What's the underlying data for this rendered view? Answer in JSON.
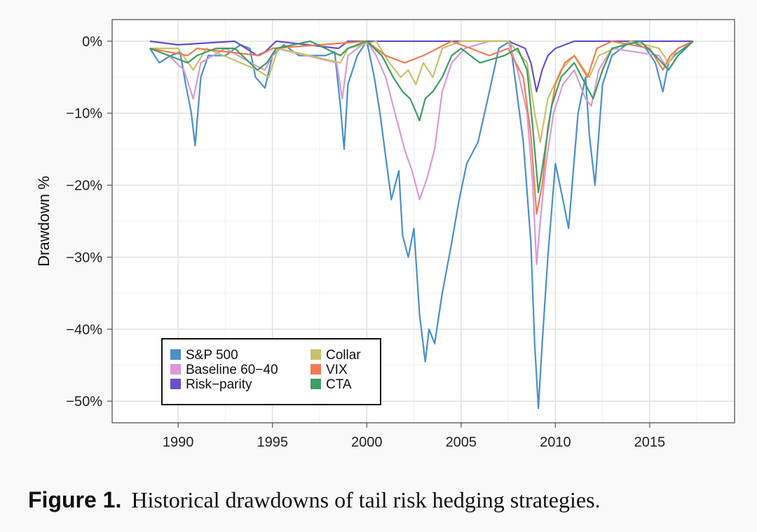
{
  "caption": {
    "label": "Figure 1.",
    "text": "Historical drawdowns of tail risk hedging strategies."
  },
  "chart_data": {
    "type": "line",
    "title": "",
    "xlabel": "",
    "ylabel": "Drawdown %",
    "xlim": [
      1986.5,
      2019.5
    ],
    "ylim": [
      -53,
      3
    ],
    "x_ticks": [
      1990,
      1995,
      2000,
      2005,
      2010,
      2015
    ],
    "y_ticks": [
      {
        "value": 0,
        "label": "0%"
      },
      {
        "value": -10,
        "label": "−10%"
      },
      {
        "value": -20,
        "label": "−20%"
      },
      {
        "value": -30,
        "label": "−30%"
      },
      {
        "value": -40,
        "label": "−40%"
      },
      {
        "value": -50,
        "label": "−50%"
      }
    ],
    "grid": true,
    "legend_position": "bottom-left",
    "series": [
      {
        "name": "S&P 500",
        "color": "#4a90c9",
        "x": [
          1988.5,
          1989.0,
          1989.6,
          1990.1,
          1990.4,
          1990.7,
          1990.9,
          1991.2,
          1991.6,
          1992.5,
          1993.3,
          1993.8,
          1994.1,
          1994.6,
          1995.0,
          1995.6,
          1996.4,
          1997.1,
          1997.8,
          1998.3,
          1998.6,
          1998.8,
          1999.0,
          1999.5,
          2000.0,
          2000.4,
          2000.7,
          2001.0,
          2001.3,
          2001.7,
          2001.9,
          2002.2,
          2002.5,
          2002.8,
          2003.1,
          2003.3,
          2003.6,
          2004.0,
          2004.5,
          2004.9,
          2005.3,
          2005.9,
          2006.5,
          2007.0,
          2007.6,
          2007.9,
          2008.3,
          2008.7,
          2008.9,
          2009.1,
          2009.3,
          2009.6,
          2010.0,
          2010.4,
          2010.7,
          2011.2,
          2011.6,
          2011.8,
          2012.1,
          2012.5,
          2013.0,
          2014.0,
          2014.8,
          2015.3,
          2015.7,
          2016.0,
          2016.3,
          2016.8,
          2017.3
        ],
        "y": [
          -1,
          -3,
          -2,
          -1.5,
          -6,
          -10,
          -14.5,
          -5,
          -2,
          -2,
          -0.5,
          -1,
          -5,
          -6.5,
          -2,
          -0.5,
          -2,
          -2,
          -2,
          -1.5,
          -9,
          -15,
          -6,
          -2,
          0,
          -5,
          -10,
          -16,
          -22,
          -18,
          -27,
          -30,
          -26,
          -38,
          -44.5,
          -40,
          -42,
          -35,
          -28,
          -22,
          -17,
          -14,
          -7,
          -1,
          0,
          -6,
          -14,
          -28,
          -42,
          -51,
          -42,
          -30,
          -17,
          -22,
          -26,
          -10,
          -5,
          -13,
          -20,
          -6,
          -2,
          0,
          -1,
          -3,
          -7,
          -3,
          -2,
          -1,
          0
        ]
      },
      {
        "name": "Baseline 60−40",
        "color": "#d99ad8",
        "x": [
          1988.5,
          1989.5,
          1990.3,
          1990.8,
          1991.2,
          1992.5,
          1994.2,
          1994.6,
          1995.2,
          1998.4,
          1998.7,
          1999.0,
          2000.0,
          2000.5,
          2001.0,
          2001.4,
          2001.7,
          2002.0,
          2002.4,
          2002.8,
          2003.2,
          2003.6,
          2004.0,
          2004.5,
          2005.2,
          2006.5,
          2007.5,
          2008.0,
          2008.5,
          2008.8,
          2009.0,
          2009.2,
          2009.5,
          2009.9,
          2010.4,
          2011.0,
          2011.6,
          2011.9,
          2012.3,
          2013.0,
          2015.5,
          2016.0,
          2016.5,
          2017.3
        ],
        "y": [
          -1,
          -2,
          -4,
          -8,
          -3,
          -1,
          -3.5,
          -4,
          -1,
          -3,
          -8,
          -2,
          0,
          -2,
          -5,
          -9,
          -12,
          -15,
          -18,
          -22,
          -19,
          -15,
          -7,
          -3,
          -1,
          0,
          0,
          -4,
          -10,
          -20,
          -31,
          -25,
          -17,
          -10,
          -6,
          -4,
          -8,
          -9,
          -4,
          -1,
          -2,
          -4,
          -2,
          0
        ]
      },
      {
        "name": "Risk−parity",
        "color": "#6a4fc9",
        "x": [
          1988.5,
          1990.0,
          1993.0,
          1994.2,
          1994.6,
          1995.2,
          1998.5,
          1999.0,
          2000.0,
          2005.0,
          2007.5,
          2008.4,
          2008.7,
          2009.0,
          2009.3,
          2009.6,
          2010.0,
          2011.0,
          2013.0,
          2015.0,
          2017.3
        ],
        "y": [
          0,
          -0.5,
          0,
          -2,
          -1.5,
          0,
          -1,
          0,
          0,
          0,
          0,
          -1,
          -3,
          -7,
          -4,
          -2,
          -1,
          0,
          0,
          0,
          0
        ]
      },
      {
        "name": "Collar",
        "color": "#c8c16a",
        "x": [
          1988.5,
          1990.0,
          1990.8,
          1991.5,
          1994.2,
          1994.8,
          1995.3,
          1998.6,
          1999.0,
          2000.5,
          2001.2,
          2001.8,
          2002.2,
          2002.6,
          2003.0,
          2003.5,
          2004.0,
          2005.0,
          2007.5,
          2008.5,
          2008.9,
          2009.2,
          2009.6,
          2010.3,
          2011.0,
          2011.8,
          2012.3,
          2014.0,
          2015.5,
          2016.0,
          2016.5,
          2017.3
        ],
        "y": [
          -1,
          -1,
          -4,
          -1,
          -4,
          -5,
          -1,
          -3,
          -1,
          0,
          -3,
          -5,
          -4,
          -6,
          -3,
          -5,
          -1,
          0,
          0,
          -3,
          -10,
          -14,
          -8,
          -4,
          -2,
          -5,
          -2,
          0,
          -1,
          -3,
          -1,
          0
        ]
      },
      {
        "name": "VIX",
        "color": "#f07d4f",
        "x": [
          1988.5,
          1990.5,
          1991.0,
          1994.3,
          1995.0,
          2000.0,
          2001.0,
          2002.0,
          2003.0,
          2004.5,
          2005.5,
          2006.5,
          2007.5,
          2008.3,
          2008.7,
          2009.0,
          2009.3,
          2009.6,
          2010.0,
          2010.5,
          2011.0,
          2011.7,
          2012.2,
          2013.0,
          2015.0,
          2015.7,
          2016.1,
          2016.5,
          2017.3
        ],
        "y": [
          -1,
          -2,
          -1,
          -2,
          -1,
          0,
          -2,
          -3,
          -2,
          0,
          -1,
          -2,
          -1,
          -5,
          -13,
          -24,
          -20,
          -12,
          -6,
          -3,
          -2,
          -5,
          -1,
          0,
          -1,
          -4,
          -2,
          -1,
          0
        ]
      },
      {
        "name": "CTA",
        "color": "#3c9e62",
        "x": [
          1988.5,
          1989.5,
          1990.5,
          1991.0,
          1992.0,
          1993.0,
          1994.2,
          1994.7,
          1995.2,
          1997.0,
          1998.6,
          1999.0,
          2000.0,
          2000.8,
          2001.4,
          2001.9,
          2002.3,
          2002.8,
          2003.1,
          2003.5,
          2004.0,
          2004.5,
          2005.0,
          2006.0,
          2007.3,
          2008.0,
          2008.5,
          2008.8,
          2009.1,
          2009.4,
          2009.8,
          2010.3,
          2011.0,
          2011.6,
          2012.0,
          2012.5,
          2013.0,
          2014.5,
          2015.3,
          2016.0,
          2016.5,
          2017.3
        ],
        "y": [
          -1,
          -2,
          -3,
          -2,
          -1,
          -1,
          -4,
          -3,
          -1,
          0,
          -2,
          -1,
          0,
          -2,
          -5,
          -7,
          -8,
          -11,
          -8,
          -7,
          -5,
          -2,
          -1,
          -3,
          -2,
          -1,
          -4,
          -12,
          -21,
          -16,
          -9,
          -5,
          -3,
          -6,
          -8,
          -4,
          -1,
          0,
          -2,
          -4,
          -2,
          0
        ]
      }
    ]
  }
}
